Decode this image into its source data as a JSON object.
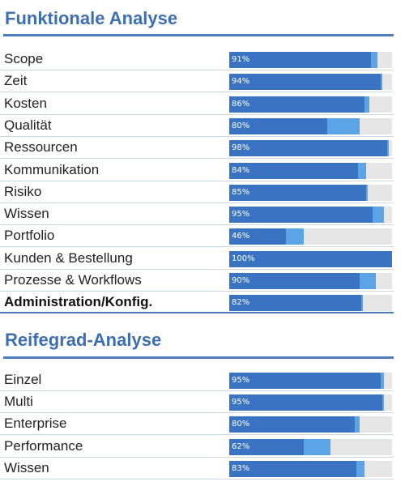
{
  "chart_data": [
    {
      "type": "bar",
      "title": "Funktionale Analyse",
      "categories": [
        "Scope",
        "Zeit",
        "Kosten",
        "Qualität",
        "Ressourcen",
        "Kommunikation",
        "Risiko",
        "Wissen",
        "Portfolio",
        "Kunden & Bestellung",
        "Prozesse & Workflows",
        "Administration/Konfig."
      ],
      "values": [
        91,
        94,
        86,
        80,
        98,
        84,
        85,
        95,
        46,
        100,
        90,
        82
      ],
      "labels": [
        "91%",
        "94%",
        "86%",
        "80%",
        "98%",
        "84%",
        "85%",
        "95%",
        "46%",
        "100%",
        "90%",
        "82%"
      ],
      "dark_values": [
        87,
        93,
        83,
        60,
        97,
        79,
        84,
        88,
        35,
        100,
        80,
        81
      ],
      "bold_category": "Administration/Konfig.",
      "xlim": [
        0,
        100
      ],
      "orientation": "horizontal"
    },
    {
      "type": "bar",
      "title": "Reifegrad-Analyse",
      "categories": [
        "Einzel",
        "Multi",
        "Enterprise",
        "Performance",
        "Wissen"
      ],
      "values": [
        95,
        95,
        80,
        62,
        83
      ],
      "labels": [
        "95%",
        "95%",
        "80%",
        "62%",
        "83%"
      ],
      "dark_values": [
        93,
        94,
        77,
        46,
        78
      ],
      "xlim": [
        0,
        100
      ],
      "orientation": "horizontal"
    }
  ],
  "colors": {
    "title": "#3d6eb2",
    "bar_dark": "#3a73c2",
    "bar_light": "#5ba5e6",
    "track": "#e6e6e6"
  }
}
